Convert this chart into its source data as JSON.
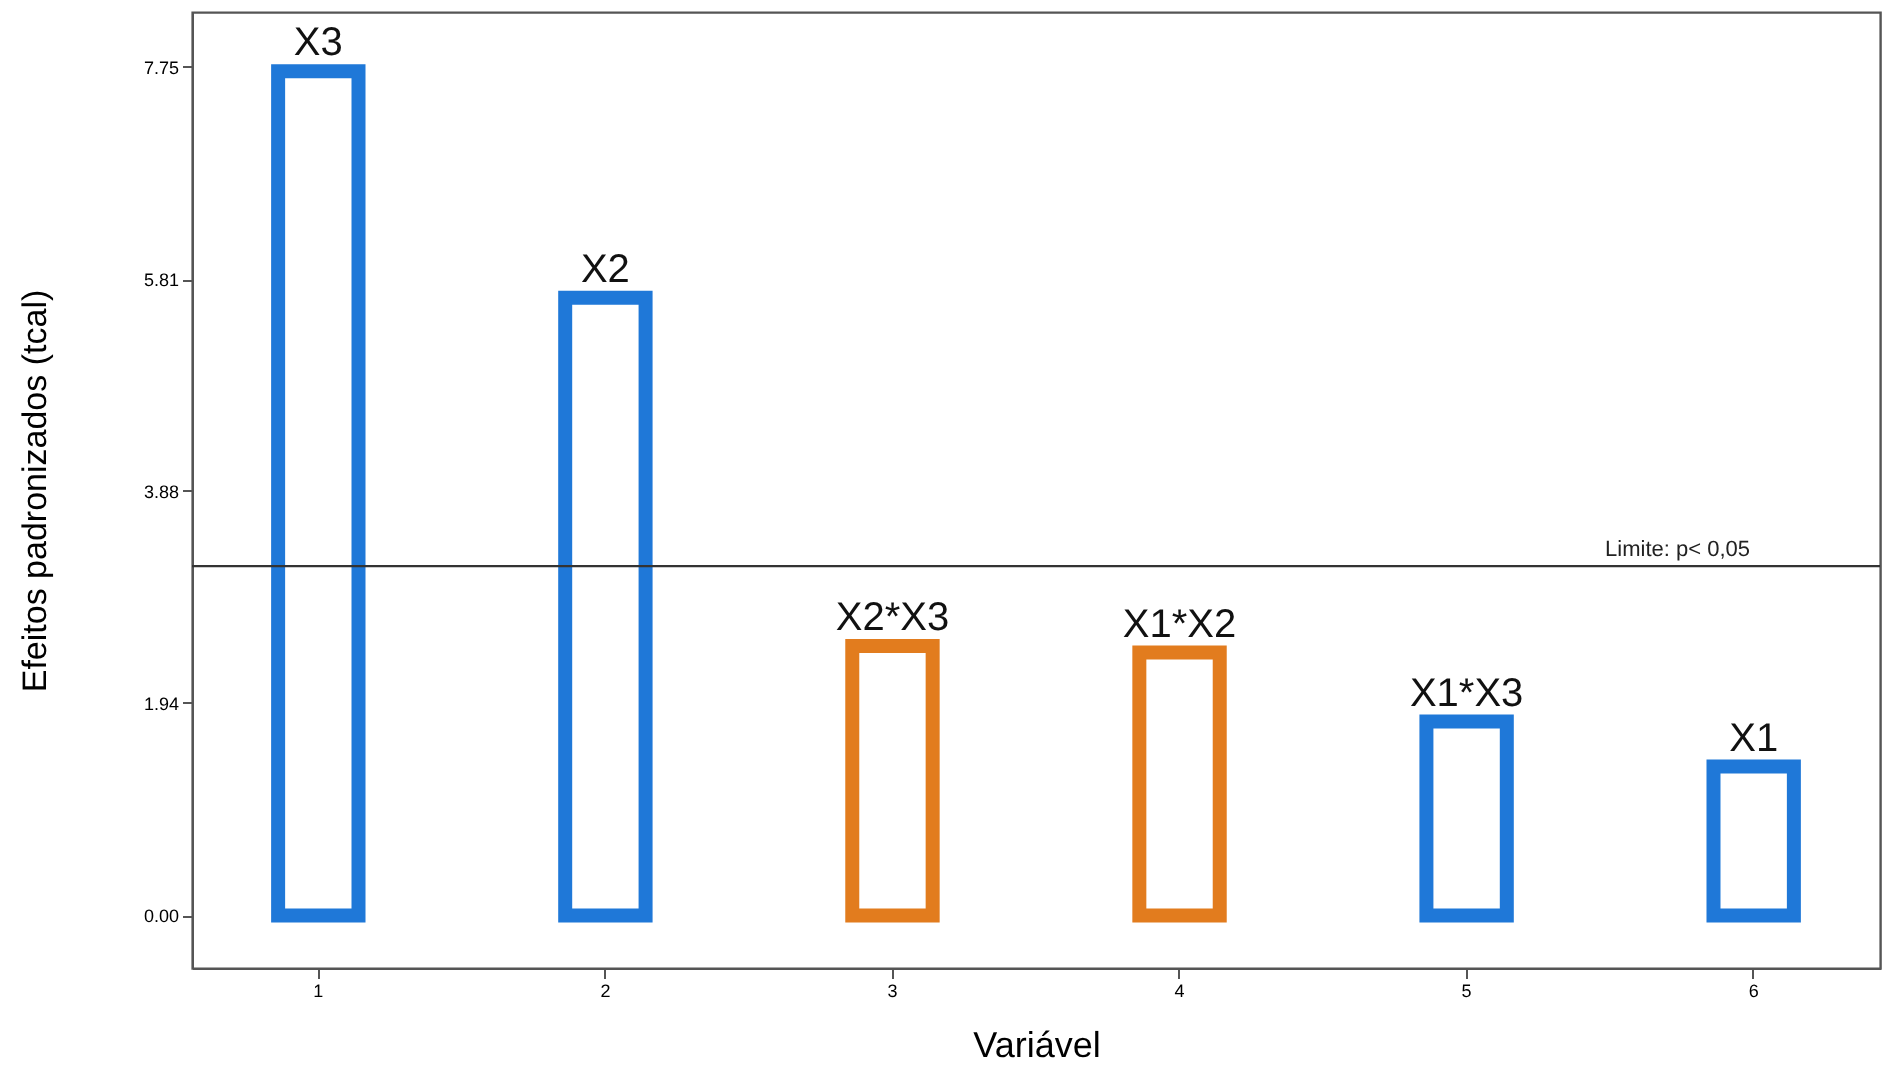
{
  "chart_data": {
    "type": "bar",
    "xlabel": "Variável",
    "ylabel": "Efeitos padronizados (tcal)",
    "categories": [
      "1",
      "2",
      "3",
      "4",
      "5",
      "6"
    ],
    "values": [
      7.71,
      5.64,
      2.46,
      2.4,
      1.77,
      1.36
    ],
    "colors": [
      "#1f78d8",
      "#1f78d8",
      "#e27c1e",
      "#e27c1e",
      "#1f78d8",
      "#1f78d8"
    ],
    "ylim": [
      -0.48,
      8.25
    ],
    "yticks": [
      {
        "value": 0,
        "label": "0.00"
      },
      1.94,
      3.88,
      5.81,
      7.75
    ],
    "ref_lines": [
      {
        "axis": "y",
        "value": 3.19,
        "label": "Limite: p< 0,05",
        "color": "#333333"
      }
    ],
    "annotations": [
      {
        "text": "X3",
        "x": "1",
        "y": 7.71
      },
      {
        "text": "X2",
        "x": "2",
        "y": 5.64
      },
      {
        "text": "X2*X3",
        "x": "3",
        "y": 2.46
      },
      {
        "text": "X1*X2",
        "x": "4",
        "y": 2.4
      },
      {
        "text": "X1*X3",
        "x": "5",
        "y": 1.77
      },
      {
        "text": "X1",
        "x": "6",
        "y": 1.36
      }
    ]
  }
}
